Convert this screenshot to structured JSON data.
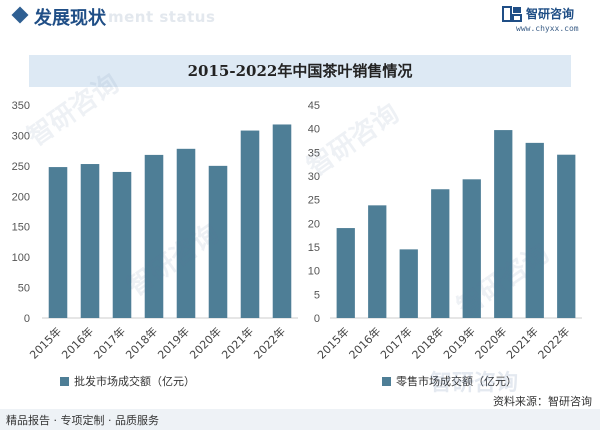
{
  "header": {
    "title": "发展现状",
    "ghost_text": "ment status"
  },
  "logo": {
    "name": "智研咨询",
    "url": "www.chyxx.com"
  },
  "page_title": "2015-2022年中国茶叶销售情况",
  "source": "资料来源：智研咨询",
  "footer": {
    "slogan": "精品报告 · 专项定制 · 品质服务"
  },
  "watermark_text": "智研咨询",
  "colors": {
    "bar": "#4e7e96",
    "accent": "#1f4e86",
    "title_band": "#dde9f4"
  },
  "chart_data": [
    {
      "type": "bar",
      "categories": [
        "2015年",
        "2016年",
        "2017年",
        "2018年",
        "2019年",
        "2020年",
        "2021年",
        "2022年"
      ],
      "series": [
        {
          "name": "批发市场成交额（亿元）",
          "values": [
            248,
            253,
            240,
            268,
            278,
            250,
            308,
            318
          ]
        }
      ],
      "ylim": [
        0,
        350
      ],
      "yticks": [
        0,
        50,
        100,
        150,
        200,
        250,
        300,
        350
      ],
      "grid": false,
      "legend": "bottom-left"
    },
    {
      "type": "bar",
      "categories": [
        "2015年",
        "2016年",
        "2017年",
        "2018年",
        "2019年",
        "2020年",
        "2021年",
        "2022年"
      ],
      "series": [
        {
          "name": "零售市场成交额（亿元）",
          "values": [
            19,
            23.8,
            14.5,
            27.2,
            29.3,
            39.7,
            37,
            34.5
          ]
        }
      ],
      "ylim": [
        0,
        45
      ],
      "yticks": [
        0,
        5,
        10,
        15,
        20,
        25,
        30,
        35,
        40,
        45
      ],
      "grid": false,
      "legend": "bottom-left"
    }
  ]
}
